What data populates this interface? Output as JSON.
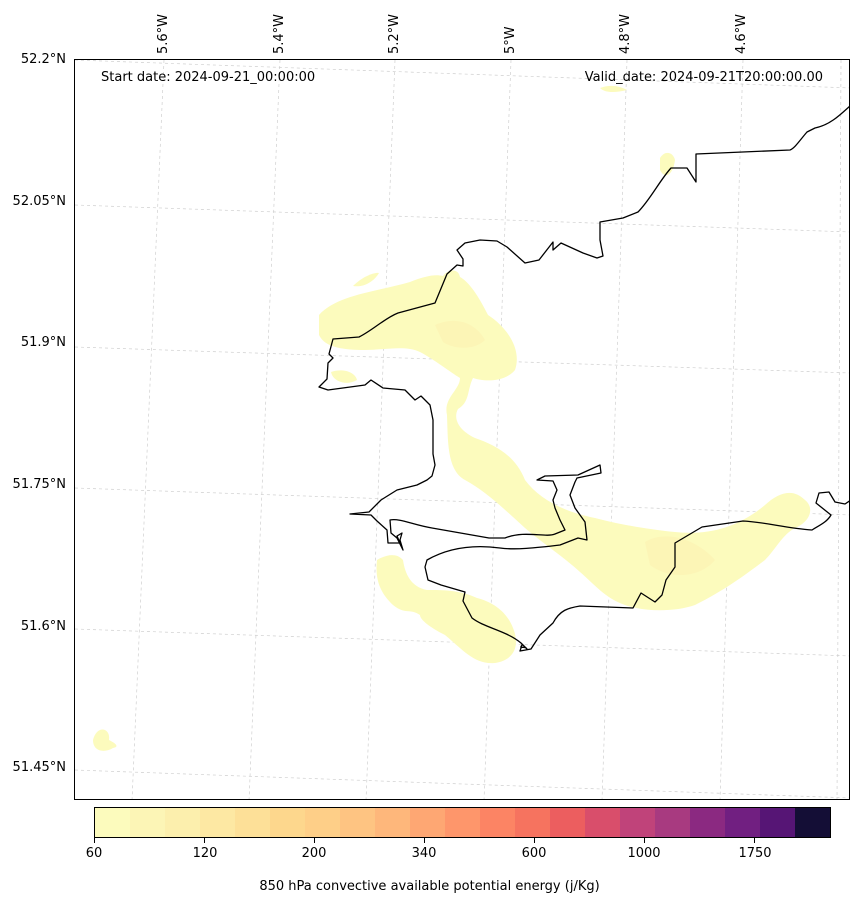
{
  "map": {
    "start_date_label": "Start date: 2024-09-21_00:00:00",
    "valid_date_label": "Valid_date: 2024-09-21T20:00:00.00",
    "lat_labels": [
      "52.2°N",
      "52.05°N",
      "51.9°N",
      "51.75°N",
      "51.6°N",
      "51.45°N"
    ],
    "lon_labels": [
      "5.6°W",
      "5.4°W",
      "5.2°W",
      "5°W",
      "4.8°W",
      "4.6°W"
    ],
    "gridlines": "dashed",
    "field": "850 hPa convective available potential energy",
    "field_colors": [
      "#fcfbbd",
      "#fcf5b6"
    ]
  },
  "colorbar": {
    "title": "850 hPa convective available potential energy (j/Kg)",
    "tick_labels": [
      "60",
      "120",
      "200",
      "340",
      "600",
      "1000",
      "1750"
    ],
    "colors": [
      "#fcfbbd",
      "#fcf5b6",
      "#fcefad",
      "#fde8a3",
      "#fde098",
      "#fdd78d",
      "#fecf88",
      "#fec482",
      "#feb77b",
      "#fea773",
      "#fe966b",
      "#fc8464",
      "#f6735f",
      "#ec5e5f",
      "#d94e6b",
      "#c0437a",
      "#a83a80",
      "#8b2981",
      "#711f81",
      "#561575",
      "#140e36"
    ]
  }
}
